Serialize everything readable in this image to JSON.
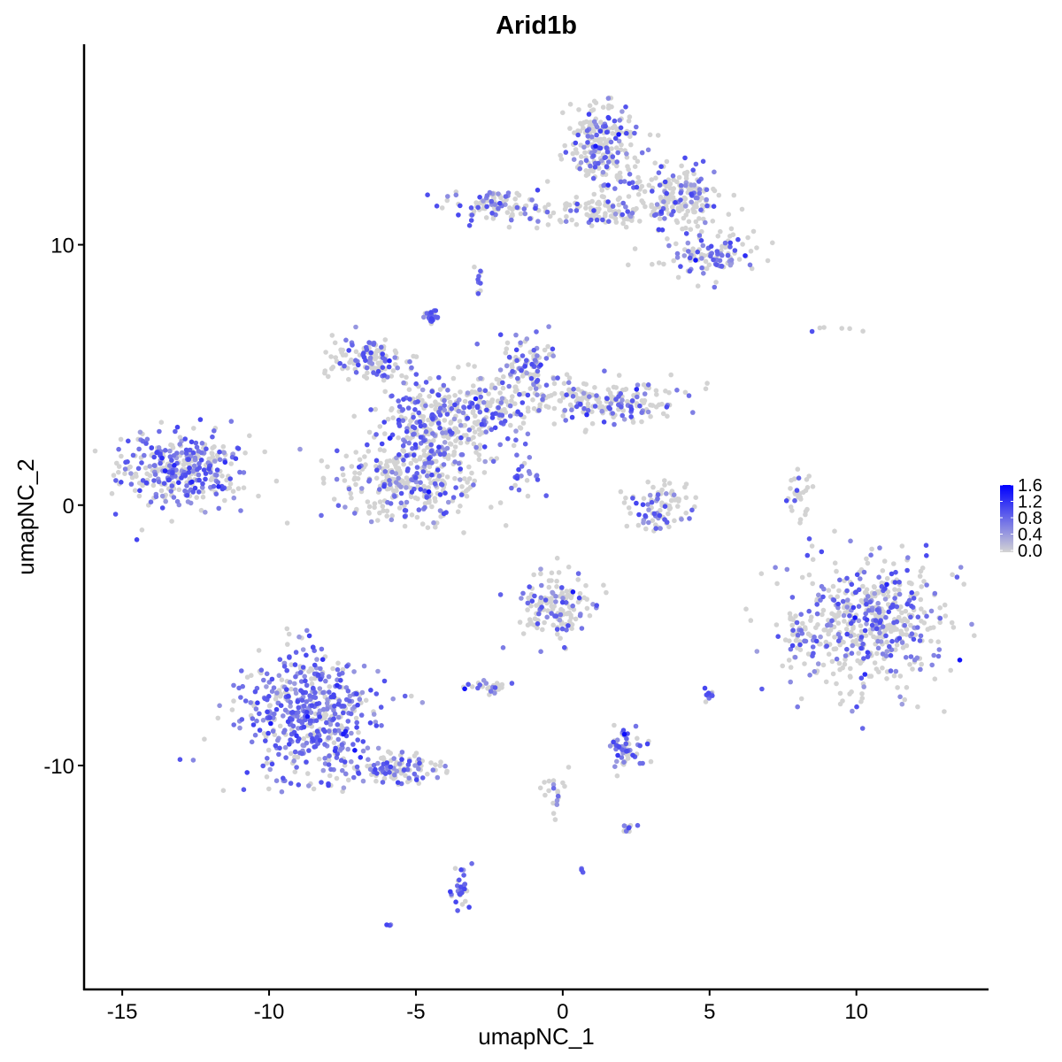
{
  "chart_data": {
    "type": "scatter",
    "title": "Arid1b",
    "xlabel": "umapNC_1",
    "ylabel": "umapNC_2",
    "xlim": [
      -16.3,
      14.5
    ],
    "ylim": [
      -18.6,
      17.7
    ],
    "xticks": [
      -15,
      -10,
      -5,
      0,
      5,
      10
    ],
    "yticks": [
      -10,
      0,
      10
    ],
    "xtick_labels": [
      "-15",
      "-10",
      "-5",
      "0",
      "5",
      "10"
    ],
    "ytick_labels": [
      "-10",
      "0",
      "10"
    ],
    "grid": false,
    "color_scale": {
      "low": "#d3d3d3",
      "high": "#0000ff",
      "min": 0.0,
      "max": 1.6
    },
    "legend": {
      "position": "right",
      "ticks": [
        1.6,
        1.2,
        0.8,
        0.4,
        0.0
      ],
      "tick_labels": [
        "1.6",
        "1.2",
        "0.8",
        "0.4",
        "0.0"
      ]
    },
    "clusters": [
      {
        "cx": -12.8,
        "cy": 1.4,
        "sx": 1.1,
        "sy": 0.65,
        "n": 360,
        "p_expr": 0.55
      },
      {
        "cx": -4.4,
        "cy": 3.1,
        "sx": 0.9,
        "sy": 0.9,
        "n": 260,
        "p_expr": 0.45
      },
      {
        "cx": -6.6,
        "cy": 5.6,
        "sx": 0.7,
        "sy": 0.4,
        "n": 120,
        "p_expr": 0.4
      },
      {
        "cx": -5.2,
        "cy": 1.0,
        "sx": 1.3,
        "sy": 0.8,
        "n": 330,
        "p_expr": 0.3
      },
      {
        "cx": -1.2,
        "cy": 5.4,
        "sx": 0.5,
        "sy": 0.6,
        "n": 90,
        "p_expr": 0.3
      },
      {
        "cx": 1.3,
        "cy": 4.0,
        "sx": 1.3,
        "sy": 0.4,
        "n": 200,
        "p_expr": 0.3
      },
      {
        "cx": -2.5,
        "cy": 3.8,
        "sx": 0.8,
        "sy": 0.7,
        "n": 140,
        "p_expr": 0.35
      },
      {
        "cx": -4.5,
        "cy": 7.3,
        "sx": 0.15,
        "sy": 0.2,
        "n": 25,
        "p_expr": 0.7
      },
      {
        "cx": 1.3,
        "cy": 13.8,
        "sx": 0.6,
        "sy": 0.8,
        "n": 220,
        "p_expr": 0.35
      },
      {
        "cx": 3.9,
        "cy": 11.8,
        "sx": 0.9,
        "sy": 0.6,
        "n": 200,
        "p_expr": 0.35
      },
      {
        "cx": -2.2,
        "cy": 11.5,
        "sx": 0.8,
        "sy": 0.25,
        "n": 110,
        "p_expr": 0.35
      },
      {
        "cx": 1.0,
        "cy": 11.2,
        "sx": 0.9,
        "sy": 0.3,
        "n": 90,
        "p_expr": 0.25
      },
      {
        "cx": 4.9,
        "cy": 9.6,
        "sx": 0.8,
        "sy": 0.4,
        "n": 110,
        "p_expr": 0.4
      },
      {
        "cx": -2.9,
        "cy": 8.6,
        "sx": 0.1,
        "sy": 0.3,
        "n": 10,
        "p_expr": 0.6
      },
      {
        "cx": -8.7,
        "cy": -8.0,
        "sx": 1.2,
        "sy": 1.2,
        "n": 520,
        "p_expr": 0.7
      },
      {
        "cx": -5.6,
        "cy": -10.1,
        "sx": 0.9,
        "sy": 0.3,
        "n": 110,
        "p_expr": 0.4
      },
      {
        "cx": 10.4,
        "cy": -4.4,
        "sx": 1.3,
        "sy": 1.3,
        "n": 520,
        "p_expr": 0.4
      },
      {
        "cx": 8.0,
        "cy": -5.0,
        "sx": 0.2,
        "sy": 0.5,
        "n": 30,
        "p_expr": 0.3
      },
      {
        "cx": 3.3,
        "cy": -0.1,
        "sx": 0.6,
        "sy": 0.45,
        "n": 90,
        "p_expr": 0.35
      },
      {
        "cx": -0.3,
        "cy": -3.8,
        "sx": 0.6,
        "sy": 0.6,
        "n": 150,
        "p_expr": 0.3
      },
      {
        "cx": 2.1,
        "cy": -9.3,
        "sx": 0.35,
        "sy": 0.35,
        "n": 60,
        "p_expr": 0.6
      },
      {
        "cx": -2.5,
        "cy": -7.0,
        "sx": 0.3,
        "sy": 0.15,
        "n": 30,
        "p_expr": 0.3
      },
      {
        "cx": -3.5,
        "cy": -14.7,
        "sx": 0.15,
        "sy": 0.4,
        "n": 30,
        "p_expr": 0.6
      },
      {
        "cx": 8.1,
        "cy": 0.3,
        "sx": 0.2,
        "sy": 0.5,
        "n": 30,
        "p_expr": 0.2
      },
      {
        "cx": 5.0,
        "cy": -7.2,
        "sx": 0.1,
        "sy": 0.15,
        "n": 10,
        "p_expr": 0.8
      },
      {
        "cx": -0.3,
        "cy": -11.0,
        "sx": 0.2,
        "sy": 0.6,
        "n": 20,
        "p_expr": 0.3
      },
      {
        "cx": 2.2,
        "cy": -12.4,
        "sx": 0.2,
        "sy": 0.1,
        "n": 10,
        "p_expr": 0.4
      },
      {
        "cx": 0.7,
        "cy": -14.0,
        "sx": 0.05,
        "sy": 0.05,
        "n": 3,
        "p_expr": 1.0
      },
      {
        "cx": -5.9,
        "cy": -16.1,
        "sx": 0.05,
        "sy": 0.05,
        "n": 3,
        "p_expr": 1.0
      },
      {
        "cx": -1.4,
        "cy": 1.1,
        "sx": 0.4,
        "sy": 0.4,
        "n": 20,
        "p_expr": 0.6
      },
      {
        "cx": 9.4,
        "cy": 6.7,
        "sx": 0.5,
        "sy": 0.1,
        "n": 6,
        "p_expr": 0.3
      }
    ]
  }
}
